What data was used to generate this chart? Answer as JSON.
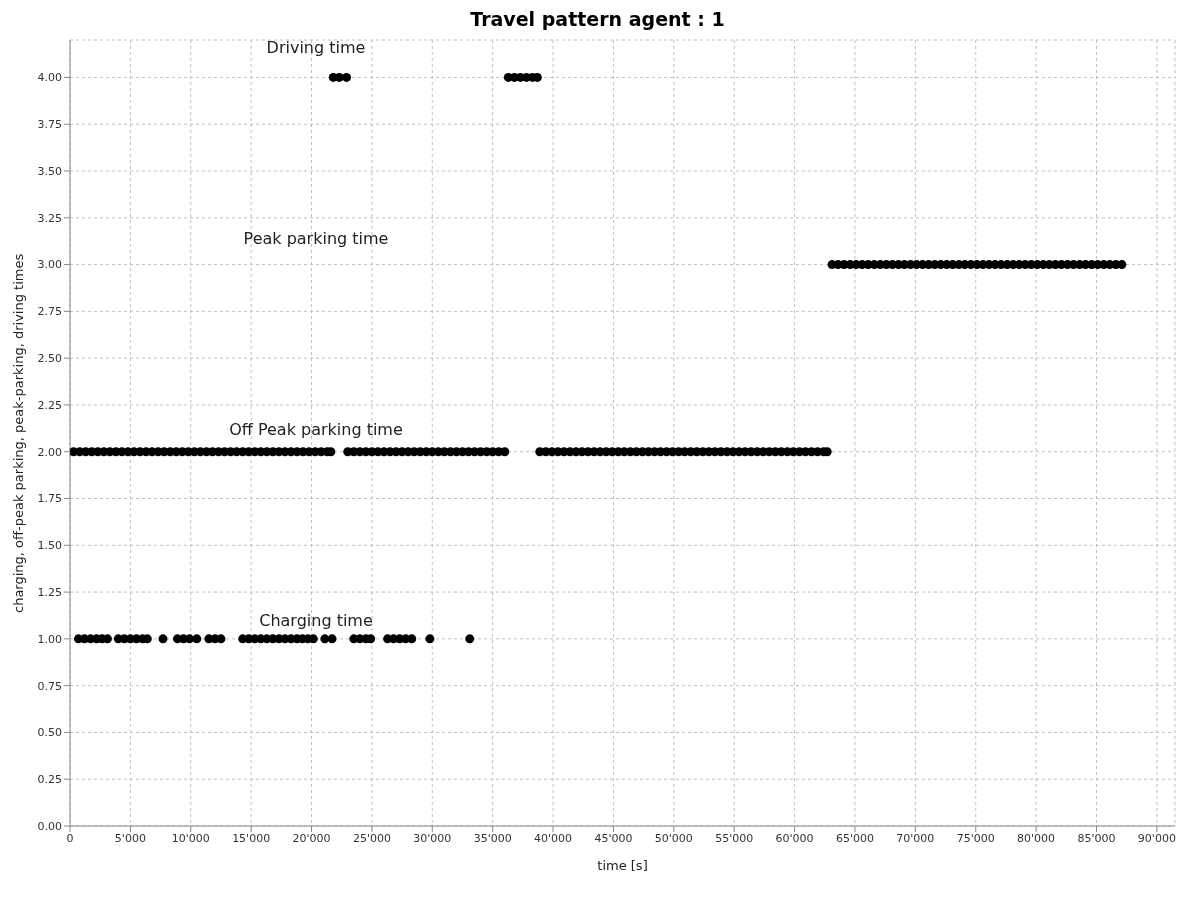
{
  "chart_data": {
    "type": "scatter",
    "title": "Travel pattern agent : 1",
    "xlabel": "time [s]",
    "ylabel": "charging, off-peak parking, peak-parking, driving times",
    "xlim": [
      0,
      91500
    ],
    "ylim": [
      0,
      4.2
    ],
    "xticks": [
      0,
      {
        "value": 5000,
        "label": "5'000"
      },
      {
        "value": 10000,
        "label": "10'000"
      },
      {
        "value": 15000,
        "label": "15'000"
      },
      {
        "value": 20000,
        "label": "20'000"
      },
      {
        "value": 25000,
        "label": "25'000"
      },
      {
        "value": 30000,
        "label": "30'000"
      },
      {
        "value": 35000,
        "label": "35'000"
      },
      {
        "value": 40000,
        "label": "40'000"
      },
      {
        "value": 45000,
        "label": "45'000"
      },
      {
        "value": 50000,
        "label": "50'000"
      },
      {
        "value": 55000,
        "label": "55'000"
      },
      {
        "value": 60000,
        "label": "60'000"
      },
      {
        "value": 65000,
        "label": "65'000"
      },
      {
        "value": 70000,
        "label": "70'000"
      },
      {
        "value": 75000,
        "label": "75'000"
      },
      {
        "value": 80000,
        "label": "80'000"
      },
      {
        "value": 85000,
        "label": "85'000"
      },
      {
        "value": 90000,
        "label": "90'000"
      }
    ],
    "yticks": [
      {
        "value": 0,
        "label": "0.00"
      },
      {
        "value": 0.25,
        "label": "0.25"
      },
      {
        "value": 0.5,
        "label": "0.50"
      },
      {
        "value": 0.75,
        "label": "0.75"
      },
      {
        "value": 1,
        "label": "1.00"
      },
      {
        "value": 1.25,
        "label": "1.25"
      },
      {
        "value": 1.5,
        "label": "1.50"
      },
      {
        "value": 1.75,
        "label": "1.75"
      },
      {
        "value": 2,
        "label": "2.00"
      },
      {
        "value": 2.25,
        "label": "2.25"
      },
      {
        "value": 2.5,
        "label": "2.50"
      },
      {
        "value": 2.75,
        "label": "2.75"
      },
      {
        "value": 3,
        "label": "3.00"
      },
      {
        "value": 3.25,
        "label": "3.25"
      },
      {
        "value": 3.5,
        "label": "3.50"
      },
      {
        "value": 3.75,
        "label": "3.75"
      },
      {
        "value": 4,
        "label": "4.00"
      }
    ],
    "grid": true,
    "marker": "circle",
    "legend": false,
    "series": [
      {
        "color": "#000000",
        "x": [
          700,
          1200,
          1700,
          2200,
          2650,
          3100,
          4000,
          4500,
          5000,
          5500,
          6000,
          6400,
          7700,
          8900,
          9400,
          9900,
          10500,
          11500,
          12000,
          12500,
          14300,
          14800,
          15300,
          15800,
          16300,
          16800,
          17300,
          17800,
          18300,
          18800,
          19250,
          19700,
          20150,
          21100,
          21700,
          23500,
          24000,
          24500,
          24900,
          26300,
          26800,
          27300,
          27800,
          28300,
          29800,
          33100
        ],
        "values": [
          1,
          1,
          1,
          1,
          1,
          1,
          1,
          1,
          1,
          1,
          1,
          1,
          1,
          1,
          1,
          1,
          1,
          1,
          1,
          1,
          1,
          1,
          1,
          1,
          1,
          1,
          1,
          1,
          1,
          1,
          1,
          1,
          1,
          1,
          1,
          1,
          1,
          1,
          1,
          1,
          1,
          1,
          1,
          1,
          1,
          1
        ]
      },
      {
        "color": "#000000",
        "x": [
          300,
          800,
          1300,
          1800,
          2300,
          2800,
          3300,
          3800,
          4300,
          4800,
          5300,
          5800,
          6300,
          6800,
          7300,
          7800,
          8300,
          8800,
          9300,
          9800,
          10300,
          10800,
          11300,
          11800,
          12300,
          12800,
          13300,
          13800,
          14300,
          14800,
          15300,
          15800,
          16300,
          16800,
          17300,
          17800,
          18300,
          18800,
          19300,
          19800,
          20300,
          20800,
          21300,
          21600
        ],
        "values": [
          2,
          2,
          2,
          2,
          2,
          2,
          2,
          2,
          2,
          2,
          2,
          2,
          2,
          2,
          2,
          2,
          2,
          2,
          2,
          2,
          2,
          2,
          2,
          2,
          2,
          2,
          2,
          2,
          2,
          2,
          2,
          2,
          2,
          2,
          2,
          2,
          2,
          2,
          2,
          2,
          2,
          2,
          2,
          2
        ]
      },
      {
        "color": "#000000",
        "x": [
          23000,
          23500,
          24000,
          24500,
          25000,
          25500,
          26000,
          26500,
          27000,
          27500,
          28000,
          28500,
          29000,
          29500,
          30000,
          30500,
          31000,
          31500,
          32000,
          32500,
          33000,
          33500,
          34000,
          34500,
          35000,
          35500,
          36000
        ],
        "values": [
          2,
          2,
          2,
          2,
          2,
          2,
          2,
          2,
          2,
          2,
          2,
          2,
          2,
          2,
          2,
          2,
          2,
          2,
          2,
          2,
          2,
          2,
          2,
          2,
          2,
          2,
          2
        ]
      },
      {
        "color": "#000000",
        "x": [
          38900,
          39400,
          39900,
          40400,
          40900,
          41400,
          41900,
          42400,
          42900,
          43400,
          43900,
          44400,
          44900,
          45400,
          45900,
          46400,
          46900,
          47400,
          47900,
          48400,
          48900,
          49400,
          49900,
          50400,
          50900,
          51400,
          51900,
          52400,
          52900,
          53400,
          53900,
          54400,
          54900,
          55400,
          55900,
          56400,
          56900,
          57400,
          57900,
          58400,
          58900,
          59400,
          59900,
          60400,
          60900,
          61400,
          61900,
          62400,
          62700
        ],
        "values": [
          2,
          2,
          2,
          2,
          2,
          2,
          2,
          2,
          2,
          2,
          2,
          2,
          2,
          2,
          2,
          2,
          2,
          2,
          2,
          2,
          2,
          2,
          2,
          2,
          2,
          2,
          2,
          2,
          2,
          2,
          2,
          2,
          2,
          2,
          2,
          2,
          2,
          2,
          2,
          2,
          2,
          2,
          2,
          2,
          2,
          2,
          2,
          2,
          2
        ]
      },
      {
        "color": "#000000",
        "x": [
          63100,
          63600,
          64100,
          64600,
          65100,
          65600,
          66100,
          66600,
          67100,
          67600,
          68100,
          68600,
          69100,
          69600,
          70100,
          70600,
          71100,
          71600,
          72100,
          72600,
          73100,
          73600,
          74100,
          74600,
          75100,
          75600,
          76100,
          76600,
          77100,
          77600,
          78100,
          78600,
          79100,
          79600,
          80100,
          80600,
          81100,
          81600,
          82100,
          82600,
          83100,
          83600,
          84100,
          84600,
          85100,
          85600,
          86100,
          86600,
          87100
        ],
        "values": [
          3,
          3,
          3,
          3,
          3,
          3,
          3,
          3,
          3,
          3,
          3,
          3,
          3,
          3,
          3,
          3,
          3,
          3,
          3,
          3,
          3,
          3,
          3,
          3,
          3,
          3,
          3,
          3,
          3,
          3,
          3,
          3,
          3,
          3,
          3,
          3,
          3,
          3,
          3,
          3,
          3,
          3,
          3,
          3,
          3,
          3,
          3,
          3,
          3
        ]
      },
      {
        "color": "#000000",
        "x": [
          21800,
          22300,
          22900,
          36300,
          36800,
          37300,
          37800,
          38300,
          38700
        ],
        "values": [
          4,
          4,
          4,
          4,
          4,
          4,
          4,
          4,
          4
        ]
      }
    ],
    "annotations": [
      "Driving time",
      "Peak parking time",
      "Off Peak parking time",
      "Charging time"
    ]
  }
}
